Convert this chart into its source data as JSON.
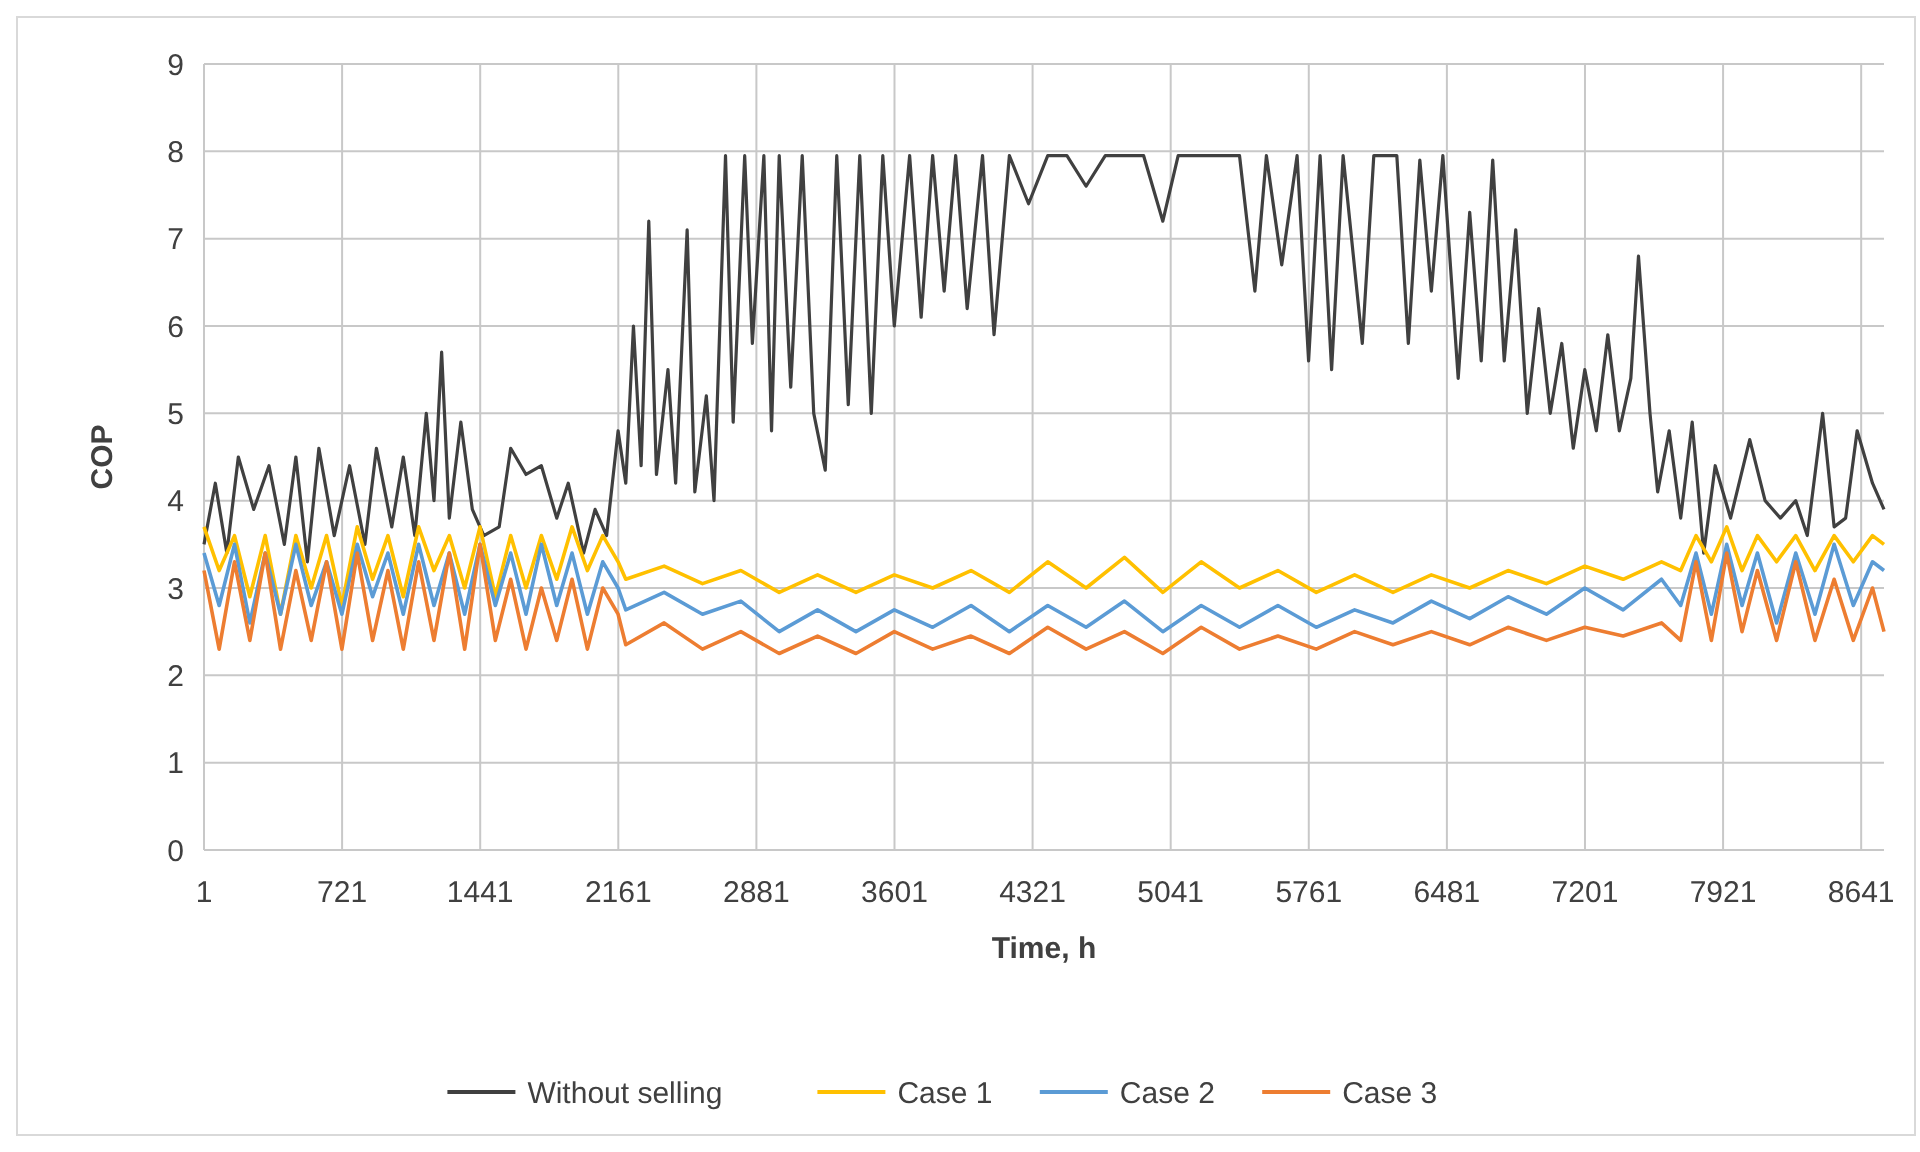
{
  "chart_data": {
    "type": "line",
    "xlabel": "Time, h",
    "ylabel": "COP",
    "xlim": [
      1,
      8760
    ],
    "xticks": [
      1,
      721,
      1441,
      2161,
      2881,
      3601,
      4321,
      5041,
      5761,
      6481,
      7201,
      7921,
      8641
    ],
    "ylim": [
      0,
      9
    ],
    "yticks": [
      0,
      1,
      2,
      3,
      4,
      5,
      6,
      7,
      8,
      9
    ],
    "grid": true,
    "legend": "bottom",
    "line_style": "solid",
    "series": [
      {
        "name": "Without selling",
        "color": "#404040",
        "x": [
          1,
          60,
          120,
          180,
          260,
          340,
          420,
          480,
          540,
          600,
          680,
          760,
          840,
          900,
          980,
          1040,
          1100,
          1160,
          1200,
          1240,
          1280,
          1340,
          1400,
          1460,
          1540,
          1600,
          1680,
          1760,
          1840,
          1900,
          1980,
          2040,
          2100,
          2160,
          2200,
          2240,
          2280,
          2320,
          2360,
          2420,
          2460,
          2520,
          2560,
          2620,
          2660,
          2720,
          2760,
          2820,
          2860,
          2920,
          2960,
          3000,
          3060,
          3120,
          3180,
          3240,
          3300,
          3360,
          3420,
          3480,
          3540,
          3600,
          3680,
          3740,
          3800,
          3860,
          3920,
          3980,
          4060,
          4120,
          4200,
          4300,
          4400,
          4500,
          4600,
          4700,
          4900,
          5000,
          5080,
          5400,
          5480,
          5540,
          5620,
          5700,
          5760,
          5820,
          5880,
          5940,
          6040,
          6100,
          6220,
          6280,
          6340,
          6400,
          6460,
          6540,
          6600,
          6660,
          6720,
          6780,
          6840,
          6900,
          6960,
          7020,
          7080,
          7140,
          7200,
          7260,
          7320,
          7380,
          7440,
          7480,
          7540,
          7580,
          7640,
          7700,
          7760,
          7820,
          7880,
          7960,
          8060,
          8140,
          8220,
          8300,
          8360,
          8440,
          8500,
          8560,
          8620,
          8700,
          8760
        ],
        "values": [
          3.5,
          4.2,
          3.4,
          4.5,
          3.9,
          4.4,
          3.5,
          4.5,
          3.3,
          4.6,
          3.6,
          4.4,
          3.5,
          4.6,
          3.7,
          4.5,
          3.6,
          5.0,
          4.0,
          5.7,
          3.8,
          4.9,
          3.9,
          3.6,
          3.7,
          4.6,
          4.3,
          4.4,
          3.8,
          4.2,
          3.4,
          3.9,
          3.6,
          4.8,
          4.2,
          6.0,
          4.4,
          7.2,
          4.3,
          5.5,
          4.2,
          7.1,
          4.1,
          5.2,
          4.0,
          7.95,
          4.9,
          7.95,
          5.8,
          7.95,
          4.8,
          7.95,
          5.3,
          7.95,
          5.0,
          4.35,
          7.95,
          5.1,
          7.95,
          5.0,
          7.95,
          6.0,
          7.95,
          6.1,
          7.95,
          6.4,
          7.95,
          6.2,
          7.95,
          5.9,
          7.95,
          7.4,
          7.95,
          7.95,
          7.6,
          7.95,
          7.95,
          7.2,
          7.95,
          7.95,
          6.4,
          7.95,
          6.7,
          7.95,
          5.6,
          7.95,
          5.5,
          7.95,
          5.8,
          7.95,
          7.95,
          5.8,
          7.9,
          6.4,
          7.95,
          5.4,
          7.3,
          5.6,
          7.9,
          5.6,
          7.1,
          5.0,
          6.2,
          5.0,
          5.8,
          4.6,
          5.5,
          4.8,
          5.9,
          4.8,
          5.4,
          6.8,
          5.0,
          4.1,
          4.8,
          3.8,
          4.9,
          3.4,
          4.4,
          3.8,
          4.7,
          4.0,
          3.8,
          4.0,
          3.6,
          5.0,
          3.7,
          3.8,
          4.8,
          4.2,
          3.9
        ]
      },
      {
        "name": "Case 1",
        "color": "#ffc000",
        "x": [
          1,
          80,
          160,
          240,
          320,
          400,
          480,
          560,
          640,
          720,
          800,
          880,
          960,
          1040,
          1120,
          1200,
          1280,
          1360,
          1440,
          1520,
          1600,
          1680,
          1760,
          1840,
          1920,
          2000,
          2080,
          2160,
          2200,
          2400,
          2600,
          2800,
          3000,
          3200,
          3400,
          3600,
          3800,
          4000,
          4200,
          4400,
          4600,
          4800,
          5000,
          5200,
          5400,
          5600,
          5800,
          6000,
          6200,
          6400,
          6600,
          6800,
          7000,
          7200,
          7400,
          7600,
          7700,
          7780,
          7860,
          7940,
          8020,
          8100,
          8200,
          8300,
          8400,
          8500,
          8600,
          8700,
          8760
        ],
        "values": [
          3.7,
          3.2,
          3.6,
          2.9,
          3.6,
          2.7,
          3.6,
          3.0,
          3.6,
          2.8,
          3.7,
          3.1,
          3.6,
          2.9,
          3.7,
          3.2,
          3.6,
          3.0,
          3.7,
          2.9,
          3.6,
          3.0,
          3.6,
          3.1,
          3.7,
          3.2,
          3.6,
          3.3,
          3.1,
          3.25,
          3.05,
          3.2,
          2.95,
          3.15,
          2.95,
          3.15,
          3.0,
          3.2,
          2.95,
          3.3,
          3.0,
          3.35,
          2.95,
          3.3,
          3.0,
          3.2,
          2.95,
          3.15,
          2.95,
          3.15,
          3.0,
          3.2,
          3.05,
          3.25,
          3.1,
          3.3,
          3.2,
          3.6,
          3.3,
          3.7,
          3.2,
          3.6,
          3.3,
          3.6,
          3.2,
          3.6,
          3.3,
          3.6,
          3.5
        ]
      },
      {
        "name": "Case 2",
        "color": "#5b9bd5",
        "x": [
          1,
          80,
          160,
          240,
          320,
          400,
          480,
          560,
          640,
          720,
          800,
          880,
          960,
          1040,
          1120,
          1200,
          1280,
          1360,
          1440,
          1520,
          1600,
          1680,
          1760,
          1840,
          1920,
          2000,
          2080,
          2160,
          2200,
          2400,
          2600,
          2800,
          3000,
          3200,
          3400,
          3600,
          3800,
          4000,
          4200,
          4400,
          4600,
          4800,
          5000,
          5200,
          5400,
          5600,
          5800,
          6000,
          6200,
          6400,
          6600,
          6800,
          7000,
          7200,
          7400,
          7600,
          7700,
          7780,
          7860,
          7940,
          8020,
          8100,
          8200,
          8300,
          8400,
          8500,
          8600,
          8700,
          8760
        ],
        "values": [
          3.4,
          2.8,
          3.5,
          2.6,
          3.4,
          2.7,
          3.5,
          2.8,
          3.3,
          2.7,
          3.5,
          2.9,
          3.4,
          2.7,
          3.5,
          2.8,
          3.4,
          2.7,
          3.5,
          2.8,
          3.4,
          2.7,
          3.5,
          2.8,
          3.4,
          2.7,
          3.3,
          3.0,
          2.75,
          2.95,
          2.7,
          2.85,
          2.5,
          2.75,
          2.5,
          2.75,
          2.55,
          2.8,
          2.5,
          2.8,
          2.55,
          2.85,
          2.5,
          2.8,
          2.55,
          2.8,
          2.55,
          2.75,
          2.6,
          2.85,
          2.65,
          2.9,
          2.7,
          3.0,
          2.75,
          3.1,
          2.8,
          3.4,
          2.7,
          3.5,
          2.8,
          3.4,
          2.6,
          3.4,
          2.7,
          3.5,
          2.8,
          3.3,
          3.2
        ]
      },
      {
        "name": "Case 3",
        "color": "#ed7d31",
        "x": [
          1,
          80,
          160,
          240,
          320,
          400,
          480,
          560,
          640,
          720,
          800,
          880,
          960,
          1040,
          1120,
          1200,
          1280,
          1360,
          1440,
          1520,
          1600,
          1680,
          1760,
          1840,
          1920,
          2000,
          2080,
          2160,
          2200,
          2400,
          2600,
          2800,
          3000,
          3200,
          3400,
          3600,
          3800,
          4000,
          4200,
          4400,
          4600,
          4800,
          5000,
          5200,
          5400,
          5600,
          5800,
          6000,
          6200,
          6400,
          6600,
          6800,
          7000,
          7200,
          7400,
          7600,
          7700,
          7780,
          7860,
          7940,
          8020,
          8100,
          8200,
          8300,
          8400,
          8500,
          8600,
          8700,
          8760
        ],
        "values": [
          3.2,
          2.3,
          3.3,
          2.4,
          3.4,
          2.3,
          3.2,
          2.4,
          3.3,
          2.3,
          3.4,
          2.4,
          3.2,
          2.3,
          3.3,
          2.4,
          3.4,
          2.3,
          3.5,
          2.4,
          3.1,
          2.3,
          3.0,
          2.4,
          3.1,
          2.3,
          3.0,
          2.7,
          2.35,
          2.6,
          2.3,
          2.5,
          2.25,
          2.45,
          2.25,
          2.5,
          2.3,
          2.45,
          2.25,
          2.55,
          2.3,
          2.5,
          2.25,
          2.55,
          2.3,
          2.45,
          2.3,
          2.5,
          2.35,
          2.5,
          2.35,
          2.55,
          2.4,
          2.55,
          2.45,
          2.6,
          2.4,
          3.3,
          2.4,
          3.4,
          2.5,
          3.2,
          2.4,
          3.3,
          2.4,
          3.1,
          2.4,
          3.0,
          2.5
        ]
      }
    ]
  }
}
